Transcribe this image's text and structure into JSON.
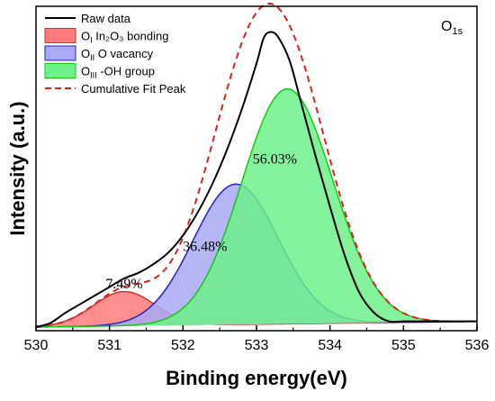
{
  "chart_data": {
    "type": "area",
    "xlabel": "Binding energy(eV)",
    "ylabel": "Intensity (a.u.)",
    "xlim": [
      530,
      536
    ],
    "ylim": [
      0,
      1.0
    ],
    "x_ticks": [
      "530",
      "531",
      "532",
      "533",
      "534",
      "535",
      "536"
    ],
    "corner_label": {
      "main": "O",
      "sub": "1s"
    },
    "legend": {
      "position": "top-left",
      "entries": [
        {
          "key": "raw",
          "main": "Raw data",
          "sub": "",
          "rest": "",
          "swatch": "line",
          "color": "#000000"
        },
        {
          "key": "o1",
          "main": "O",
          "sub": "I",
          "rest": " In₂O₃ bonding",
          "swatch": "fill",
          "color": "#ff7a7a",
          "edge": "#cc3333"
        },
        {
          "key": "o2",
          "main": "O",
          "sub": "II",
          "rest": " O vacancy",
          "swatch": "fill",
          "color": "#a9a9f5",
          "edge": "#2222cc"
        },
        {
          "key": "o3",
          "main": "O",
          "sub": "III",
          "rest": " -OH group",
          "swatch": "fill",
          "color": "#6ef08a",
          "edge": "#11cc11"
        },
        {
          "key": "fit",
          "main": "Cumulative Fit Peak",
          "sub": "",
          "rest": "",
          "swatch": "dash",
          "color": "#e02020"
        }
      ]
    },
    "peaks": [
      {
        "name": "OI In2O3 bonding",
        "center": 531.2,
        "sigma": 0.42,
        "height": 0.12,
        "fill": "#ff7a7a",
        "stroke": "#cc3333",
        "percent_label": "7.49%",
        "label_x": 531.2,
        "label_y": 0.135
      },
      {
        "name": "OII O vacancy",
        "center": 532.72,
        "sigma": 0.58,
        "height": 0.49,
        "fill": "#a9a9f5",
        "stroke": "#2222cc",
        "percent_label": "36.48%",
        "label_x": 532.3,
        "label_y": 0.265
      },
      {
        "name": "OIII -OH group",
        "center": 533.42,
        "sigma": 0.62,
        "height": 0.82,
        "fill": "#6ef08a",
        "stroke": "#11cc11",
        "percent_label": "56.03%",
        "label_x": 533.25,
        "label_y": 0.57
      }
    ],
    "baseline": {
      "start": 0.0,
      "end": 0.02
    },
    "raw_data": {
      "x": [
        530.0,
        530.2,
        530.4,
        530.6,
        530.8,
        531.0,
        531.2,
        531.4,
        531.6,
        531.8,
        532.0,
        532.2,
        532.4,
        532.6,
        532.8,
        533.0,
        533.1,
        533.2,
        533.3,
        533.45,
        533.6,
        533.8,
        534.0,
        534.2,
        534.4,
        534.6,
        534.8,
        535.0,
        535.3,
        535.6,
        536.0
      ],
      "y": [
        0.0,
        0.015,
        0.05,
        0.08,
        0.11,
        0.14,
        0.17,
        0.19,
        0.22,
        0.26,
        0.32,
        0.4,
        0.5,
        0.62,
        0.76,
        0.92,
        1.01,
        1.03,
        1.01,
        0.93,
        0.79,
        0.6,
        0.42,
        0.25,
        0.12,
        0.05,
        0.02,
        0.02,
        0.02,
        0.02,
        0.02
      ]
    }
  }
}
